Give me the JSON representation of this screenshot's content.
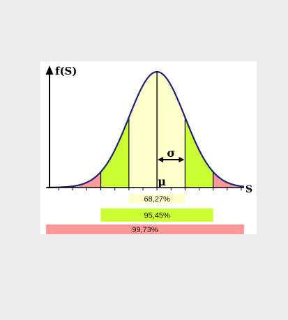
{
  "chart_data": {
    "type": "area",
    "title": "",
    "ylabel": "f(S)",
    "xlabel": "S",
    "mean_label": "μ",
    "sigma_label": "σ",
    "xlim": [
      -3.9,
      3.1
    ],
    "regions": [
      {
        "name": "one-sigma",
        "from": -1,
        "to": 1,
        "color": "#ffffcc"
      },
      {
        "name": "two-sigma",
        "from": -2,
        "to": 2,
        "color": "#ccff33"
      },
      {
        "name": "three-sigma",
        "from": -3,
        "to": 3,
        "color": "#ff9999"
      }
    ],
    "bands": [
      {
        "label": "68,27%",
        "from": -1,
        "to": 1,
        "color": "#ffffcc"
      },
      {
        "label": "95,45%",
        "from": -2,
        "to": 2,
        "color": "#ccff33"
      },
      {
        "label": "99,73%",
        "from": -3,
        "to": 3,
        "color": "#ff9999"
      }
    ],
    "curve_color": "#1a237e"
  }
}
